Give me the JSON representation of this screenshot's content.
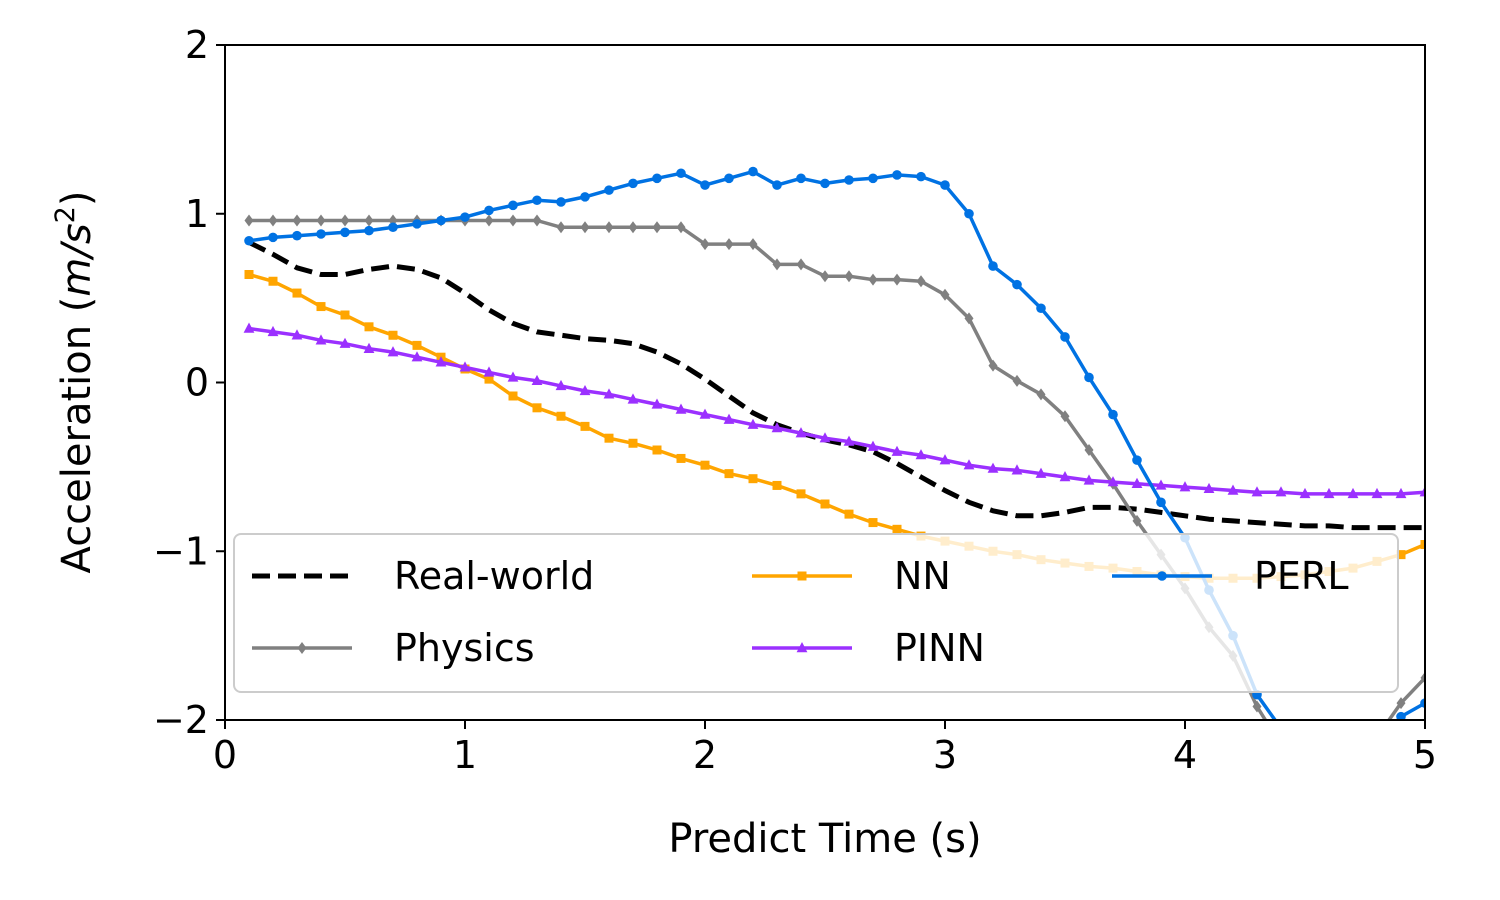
{
  "chart_data": {
    "type": "line",
    "xlabel": "Predict Time (s)",
    "ylabel_main": "Acceleration (",
    "ylabel_italic": "m/s",
    "ylabel_sup": "2",
    "ylabel_close": ")",
    "xlim": [
      0,
      5
    ],
    "ylim": [
      -2,
      2
    ],
    "xticks": [
      0,
      1,
      2,
      3,
      4,
      5
    ],
    "yticks": [
      2,
      1,
      0,
      -1,
      -2
    ],
    "xtick_labels": [
      "0",
      "1",
      "2",
      "3",
      "4",
      "5"
    ],
    "ytick_labels": [
      "2",
      "1",
      "0",
      "−1",
      "−2"
    ],
    "grid": false,
    "legend_placement": "lower-left",
    "x": [
      0.1,
      0.2,
      0.3,
      0.4,
      0.5,
      0.6,
      0.7,
      0.8,
      0.9,
      1.0,
      1.1,
      1.2,
      1.3,
      1.4,
      1.5,
      1.6,
      1.7,
      1.8,
      1.9,
      2.0,
      2.1,
      2.2,
      2.3,
      2.4,
      2.5,
      2.6,
      2.7,
      2.8,
      2.9,
      3.0,
      3.1,
      3.2,
      3.3,
      3.4,
      3.5,
      3.6,
      3.7,
      3.8,
      3.9,
      4.0,
      4.1,
      4.2,
      4.3,
      4.4,
      4.5,
      4.6,
      4.7,
      4.8,
      4.9,
      5.0
    ],
    "series": [
      {
        "name": "Real-world",
        "color": "#000000",
        "style": "dashed",
        "marker": "none",
        "values": [
          0.83,
          0.76,
          0.68,
          0.64,
          0.64,
          0.67,
          0.69,
          0.67,
          0.62,
          0.53,
          0.43,
          0.35,
          0.3,
          0.28,
          0.26,
          0.25,
          0.23,
          0.18,
          0.11,
          0.02,
          -0.08,
          -0.18,
          -0.25,
          -0.3,
          -0.34,
          -0.37,
          -0.41,
          -0.48,
          -0.56,
          -0.64,
          -0.71,
          -0.76,
          -0.79,
          -0.79,
          -0.77,
          -0.74,
          -0.74,
          -0.75,
          -0.77,
          -0.79,
          -0.81,
          -0.82,
          -0.83,
          -0.84,
          -0.85,
          -0.85,
          -0.86,
          -0.86,
          -0.86,
          -0.86
        ]
      },
      {
        "name": "Physics",
        "color": "#808080",
        "style": "solid",
        "marker": "diamond",
        "values": [
          0.96,
          0.96,
          0.96,
          0.96,
          0.96,
          0.96,
          0.96,
          0.96,
          0.96,
          0.96,
          0.96,
          0.96,
          0.96,
          0.92,
          0.92,
          0.92,
          0.92,
          0.92,
          0.92,
          0.82,
          0.82,
          0.82,
          0.7,
          0.7,
          0.63,
          0.63,
          0.61,
          0.61,
          0.6,
          0.52,
          0.38,
          0.1,
          0.01,
          -0.07,
          -0.2,
          -0.4,
          -0.6,
          -0.82,
          -1.02,
          -1.22,
          -1.45,
          -1.62,
          -1.92,
          -2.15,
          -2.3,
          -2.4,
          -2.35,
          -2.1,
          -1.9,
          -1.75
        ]
      },
      {
        "name": "NN",
        "color": "#FFA500",
        "style": "solid",
        "marker": "square",
        "values": [
          0.64,
          0.6,
          0.53,
          0.45,
          0.4,
          0.33,
          0.28,
          0.22,
          0.15,
          0.08,
          0.02,
          -0.08,
          -0.15,
          -0.2,
          -0.26,
          -0.33,
          -0.36,
          -0.4,
          -0.45,
          -0.49,
          -0.54,
          -0.57,
          -0.61,
          -0.66,
          -0.72,
          -0.78,
          -0.83,
          -0.87,
          -0.91,
          -0.94,
          -0.97,
          -1.0,
          -1.02,
          -1.05,
          -1.07,
          -1.09,
          -1.1,
          -1.12,
          -1.14,
          -1.15,
          -1.16,
          -1.16,
          -1.16,
          -1.15,
          -1.14,
          -1.12,
          -1.1,
          -1.06,
          -1.02,
          -0.96
        ]
      },
      {
        "name": "PINN",
        "color": "#9B30FF",
        "style": "solid",
        "marker": "triangle",
        "values": [
          0.32,
          0.3,
          0.28,
          0.25,
          0.23,
          0.2,
          0.18,
          0.15,
          0.12,
          0.09,
          0.06,
          0.03,
          0.01,
          -0.02,
          -0.05,
          -0.07,
          -0.1,
          -0.13,
          -0.16,
          -0.19,
          -0.22,
          -0.25,
          -0.27,
          -0.3,
          -0.33,
          -0.35,
          -0.38,
          -0.41,
          -0.43,
          -0.46,
          -0.49,
          -0.51,
          -0.52,
          -0.54,
          -0.56,
          -0.58,
          -0.59,
          -0.6,
          -0.61,
          -0.62,
          -0.63,
          -0.64,
          -0.65,
          -0.65,
          -0.66,
          -0.66,
          -0.66,
          -0.66,
          -0.66,
          -0.65
        ]
      },
      {
        "name": "PERL",
        "color": "#0072E3",
        "style": "solid",
        "marker": "circle",
        "values": [
          0.84,
          0.86,
          0.87,
          0.88,
          0.89,
          0.9,
          0.92,
          0.94,
          0.96,
          0.98,
          1.02,
          1.05,
          1.08,
          1.07,
          1.1,
          1.14,
          1.18,
          1.21,
          1.24,
          1.17,
          1.21,
          1.25,
          1.17,
          1.21,
          1.18,
          1.2,
          1.21,
          1.23,
          1.22,
          1.17,
          1.0,
          0.69,
          0.58,
          0.44,
          0.27,
          0.03,
          -0.19,
          -0.46,
          -0.71,
          -0.92,
          -1.23,
          -1.5,
          -1.85,
          -2.05,
          -2.25,
          -2.4,
          -2.35,
          -2.15,
          -1.98,
          -1.9
        ]
      }
    ]
  }
}
